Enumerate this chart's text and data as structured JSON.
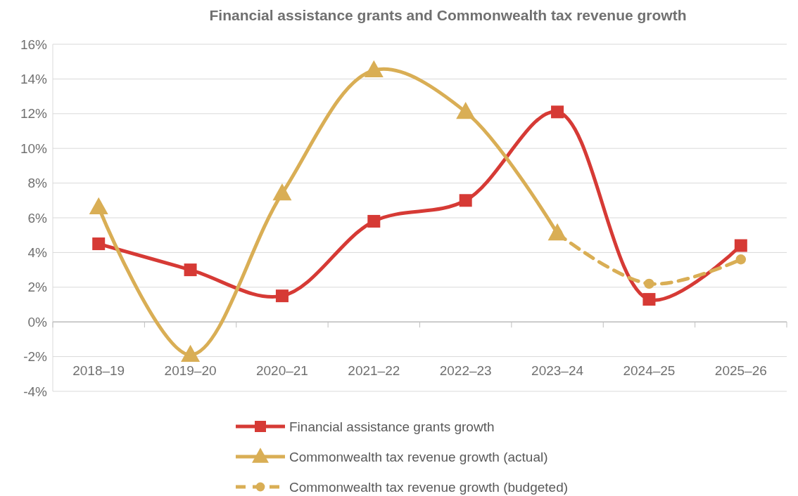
{
  "chart_data": {
    "type": "line",
    "title": "Financial assistance grants and Commonwealth tax revenue growth",
    "categories": [
      "2018–19",
      "2019–20",
      "2020–21",
      "2021–22",
      "2022–23",
      "2023–24",
      "2024–25",
      "2025–26"
    ],
    "series": [
      {
        "name": "Financial assistance grants growth",
        "color": "#d63a35",
        "marker": "square",
        "line_style": "solid",
        "values": [
          4.5,
          3.0,
          1.5,
          5.8,
          7.0,
          12.1,
          1.3,
          4.4
        ]
      },
      {
        "name": "Commonwealth tax revenue growth (actual)",
        "color": "#d9ae55",
        "marker": "triangle",
        "line_style": "solid",
        "values": [
          6.6,
          -1.9,
          7.4,
          14.5,
          12.1,
          5.1,
          null,
          null
        ]
      },
      {
        "name": "Commonwealth tax revenue growth (budgeted)",
        "color": "#d9ae55",
        "marker": "circle",
        "line_style": "dashed",
        "values": [
          null,
          null,
          null,
          null,
          null,
          5.1,
          2.2,
          3.6
        ]
      }
    ],
    "ylim": [
      -4,
      16
    ],
    "yticks": [
      {
        "value": -4,
        "label": "-4%"
      },
      {
        "value": -2,
        "label": "-2%"
      },
      {
        "value": 0,
        "label": "0%"
      },
      {
        "value": 2,
        "label": "2%"
      },
      {
        "value": 4,
        "label": "4%"
      },
      {
        "value": 6,
        "label": "6%"
      },
      {
        "value": 8,
        "label": "8%"
      },
      {
        "value": 10,
        "label": "10%"
      },
      {
        "value": 12,
        "label": "12%"
      },
      {
        "value": 14,
        "label": "14%"
      },
      {
        "value": 16,
        "label": "16%"
      }
    ],
    "grid": "y",
    "legend": "bottom"
  }
}
